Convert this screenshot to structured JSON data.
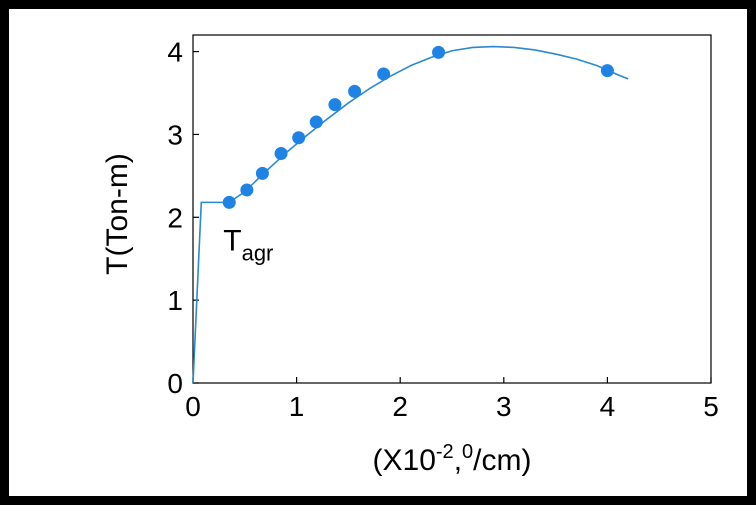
{
  "chart_data": {
    "type": "scatter",
    "title": "",
    "xlabel_parts": [
      "(X10",
      "-2",
      ",",
      "0",
      "/cm)"
    ],
    "ylabel": "T(Ton-m)",
    "xlim": [
      0,
      5
    ],
    "ylim": [
      0,
      4.2
    ],
    "x_ticks": [
      0,
      1,
      2,
      3,
      4,
      5
    ],
    "y_ticks": [
      0,
      1,
      2,
      3,
      4
    ],
    "grid": false,
    "color": "#1f83e6",
    "line_color": "#2a8ad0",
    "annotation": {
      "base": "T",
      "sub": "agr",
      "x": 0.35,
      "y": 2.18
    },
    "linear_segment": [
      [
        0,
        0
      ],
      [
        0.08,
        2.18
      ],
      [
        0.35,
        2.18
      ]
    ],
    "curve": {
      "x": [
        0.35,
        0.5,
        0.7,
        0.9,
        1.1,
        1.3,
        1.5,
        1.7,
        1.9,
        2.1,
        2.3,
        2.5,
        2.7,
        2.9,
        3.1,
        3.3,
        3.5,
        3.7,
        3.9,
        4.1,
        4.2
      ],
      "y": [
        2.18,
        2.31,
        2.55,
        2.78,
        2.99,
        3.19,
        3.38,
        3.55,
        3.7,
        3.83,
        3.93,
        4.01,
        4.05,
        4.06,
        4.05,
        4.02,
        3.97,
        3.91,
        3.83,
        3.72,
        3.67
      ]
    },
    "points": {
      "x": [
        0.35,
        0.52,
        0.67,
        0.85,
        1.02,
        1.19,
        1.37,
        1.56,
        1.84,
        2.37,
        4.0
      ],
      "y": [
        2.18,
        2.33,
        2.53,
        2.77,
        2.96,
        3.15,
        3.36,
        3.52,
        3.73,
        3.99,
        3.77
      ]
    }
  }
}
